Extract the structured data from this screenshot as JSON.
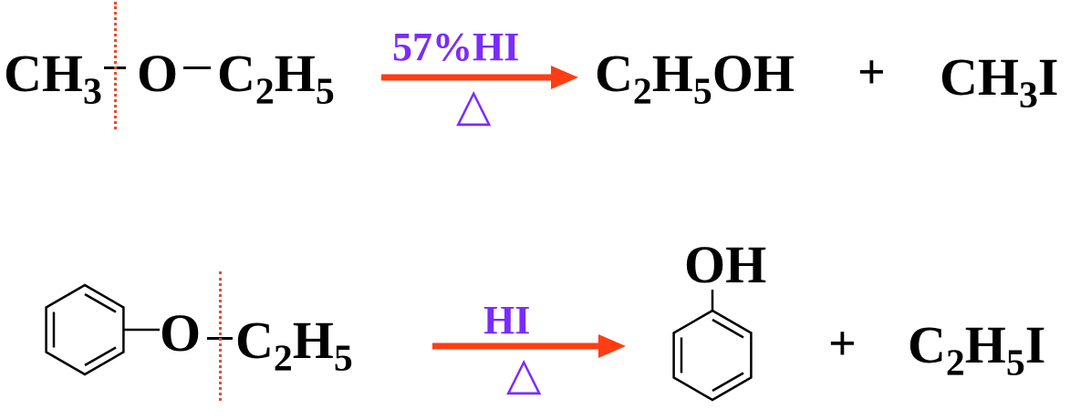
{
  "reaction1": {
    "reactant_left": "CH",
    "reactant_left_sub": "3",
    "reactant_o": "O",
    "reactant_right": "C",
    "reactant_right_sub1": "2",
    "reactant_right_mid": "H",
    "reactant_right_sub2": "5",
    "reagent": "57%HI",
    "condition": "△",
    "product1": "C",
    "product1_sub1": "2",
    "product1_mid": "H",
    "product1_sub2": "5",
    "product1_tail": "OH",
    "plus": "+",
    "product2": "CH",
    "product2_sub": "3",
    "product2_tail": "I"
  },
  "reaction2": {
    "reactant_o": "O",
    "reactant_right": "C",
    "reactant_right_sub1": "2",
    "reactant_right_mid": "H",
    "reactant_right_sub2": "5",
    "reagent": "HI",
    "condition": "△",
    "product1_label": "OH",
    "plus": "+",
    "product2": "C",
    "product2_sub1": "2",
    "product2_mid": "H",
    "product2_sub2": "5",
    "product2_tail": "I"
  },
  "colors": {
    "arrow": "#ff3d12",
    "reagent": "#7a2cff",
    "cleavage_line": "#e84a2c",
    "text": "#000000"
  }
}
